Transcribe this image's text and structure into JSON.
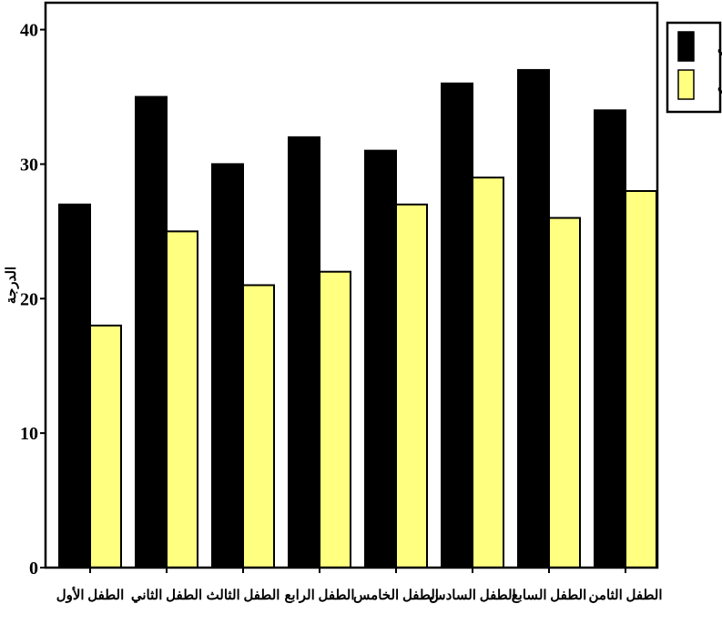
{
  "chart_data": {
    "type": "bar",
    "title": "",
    "xlabel": "",
    "ylabel": "الدرجة",
    "ylim": [
      0,
      42
    ],
    "yticks": [
      0,
      10,
      20,
      30,
      40
    ],
    "grid": false,
    "legend_position": "top-right-outside",
    "categories": [
      "الطفل الأول",
      "الطفل الثاني",
      "الطفل الثالث",
      "الطفل الرابع",
      "الطفل الخامس",
      "الطفل السادس",
      "الطفل السابع",
      "الطفل الثامن"
    ],
    "series": [
      {
        "name": "قبلي",
        "color": "#000000",
        "values": [
          27,
          35,
          30,
          32,
          31,
          36,
          37,
          34
        ]
      },
      {
        "name": "بعدي",
        "color": "#ffff80",
        "values": [
          18,
          25,
          21,
          22,
          27,
          29,
          26,
          28
        ]
      }
    ]
  }
}
